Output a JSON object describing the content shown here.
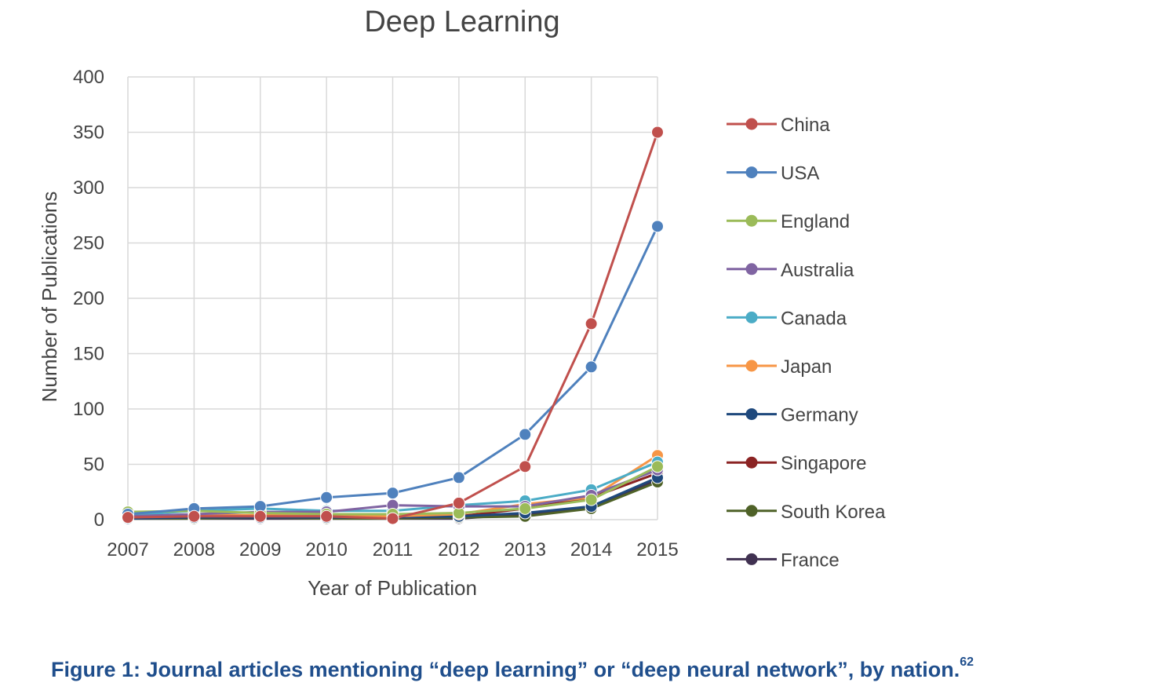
{
  "chart_data": {
    "type": "line",
    "title": "Deep Learning",
    "xlabel": "Year of Publication",
    "ylabel": "Number of Publications",
    "ylim": [
      0,
      400
    ],
    "yticks": [
      "0",
      "50",
      "100",
      "150",
      "200",
      "250",
      "300",
      "350",
      "400"
    ],
    "x": [
      "2007",
      "2008",
      "2009",
      "2010",
      "2011",
      "2012",
      "2013",
      "2014",
      "2015"
    ],
    "grid": true,
    "legend_position": "right",
    "series": [
      {
        "name": "China",
        "color": "#c0504d",
        "values": [
          2,
          3,
          3,
          3,
          1,
          15,
          48,
          177,
          350
        ]
      },
      {
        "name": "USA",
        "color": "#4f81bd",
        "values": [
          5,
          10,
          12,
          20,
          24,
          38,
          77,
          138,
          265
        ]
      },
      {
        "name": "England",
        "color": "#9bbb59",
        "values": [
          7,
          8,
          6,
          5,
          5,
          6,
          10,
          18,
          48
        ]
      },
      {
        "name": "Australia",
        "color": "#8064a2",
        "values": [
          3,
          5,
          7,
          7,
          13,
          12,
          12,
          22,
          45
        ]
      },
      {
        "name": "Canada",
        "color": "#4bacc6",
        "values": [
          4,
          8,
          10,
          8,
          8,
          13,
          17,
          27,
          52
        ]
      },
      {
        "name": "Japan",
        "color": "#f79646",
        "values": [
          2,
          4,
          4,
          4,
          3,
          5,
          14,
          20,
          58
        ]
      },
      {
        "name": "Germany",
        "color": "#1f497d",
        "values": [
          1,
          2,
          2,
          2,
          2,
          3,
          6,
          12,
          38
        ]
      },
      {
        "name": "Singapore",
        "color": "#8b2323",
        "values": [
          1,
          2,
          2,
          2,
          2,
          3,
          10,
          20,
          42
        ]
      },
      {
        "name": "South Korea",
        "color": "#4f6228",
        "values": [
          1,
          1,
          2,
          1,
          1,
          2,
          3,
          10,
          34
        ]
      },
      {
        "name": "France",
        "color": "#403151",
        "values": [
          1,
          1,
          1,
          1,
          1,
          1,
          5,
          10,
          36
        ]
      }
    ]
  },
  "caption": {
    "text": "Figure 1: Journal articles mentioning “deep learning” or “deep neural network”, by nation.",
    "superscript": "62"
  }
}
